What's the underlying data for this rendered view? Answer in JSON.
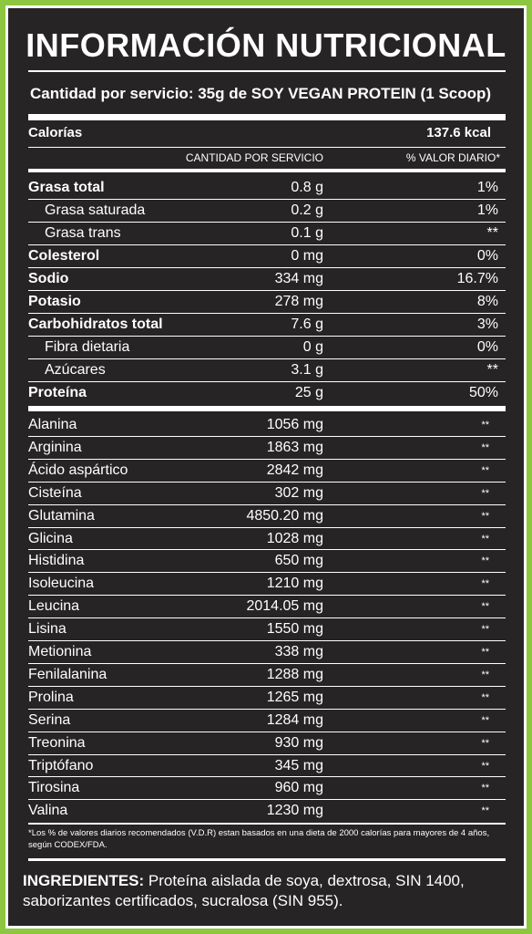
{
  "title": "INFORMACIÓN NUTRICIONAL",
  "serving": "Cantidad por servicio: 35g de SOY VEGAN PROTEIN (1 Scoop)",
  "calories": {
    "label": "Calorías",
    "value": "137.6 kcal"
  },
  "headers": {
    "amount": "CANTIDAD POR SERVICIO",
    "dv": "% VALOR DIARIO*"
  },
  "nutrients": [
    {
      "name": "Grasa total",
      "amount": "0.8 g",
      "dv": "1%",
      "bold": true
    },
    {
      "name": "Grasa saturada",
      "amount": "0.2 g",
      "dv": "1%",
      "sub": true
    },
    {
      "name": "Grasa trans",
      "amount": "0.1 g",
      "dv": "**",
      "sub": true
    },
    {
      "name": "Colesterol",
      "amount": "0 mg",
      "dv": "0%",
      "bold": true
    },
    {
      "name": "Sodio",
      "amount": "334 mg",
      "dv": "16.7%",
      "bold": true
    },
    {
      "name": "Potasio",
      "amount": "278 mg",
      "dv": "8%",
      "bold": true
    },
    {
      "name": "Carbohidratos total",
      "amount": "7.6 g",
      "dv": "3%",
      "bold": true
    },
    {
      "name": "Fibra dietaria",
      "amount": "0 g",
      "dv": "0%",
      "sub": true
    },
    {
      "name": "Azúcares",
      "amount": "3.1 g",
      "dv": "**",
      "sub": true
    },
    {
      "name": "Proteína",
      "amount": "25 g",
      "dv": "50%",
      "bold": true
    }
  ],
  "aminoacids": [
    {
      "name": "Alanina",
      "amount": "1056 mg",
      "dv": "**"
    },
    {
      "name": "Arginina",
      "amount": "1863 mg",
      "dv": "**"
    },
    {
      "name": "Ácido aspártico",
      "amount": "2842 mg",
      "dv": "**"
    },
    {
      "name": "Cisteína",
      "amount": "302 mg",
      "dv": "**"
    },
    {
      "name": "Glutamina",
      "amount": "4850.20 mg",
      "dv": "**"
    },
    {
      "name": "Glicina",
      "amount": "1028 mg",
      "dv": "**"
    },
    {
      "name": "Histidina",
      "amount": "650 mg",
      "dv": "**"
    },
    {
      "name": "Isoleucina",
      "amount": "1210 mg",
      "dv": "**"
    },
    {
      "name": "Leucina",
      "amount": "2014.05 mg",
      "dv": "**"
    },
    {
      "name": "Lisina",
      "amount": "1550 mg",
      "dv": "**"
    },
    {
      "name": "Metionina",
      "amount": "338 mg",
      "dv": "**"
    },
    {
      "name": "Fenilalanina",
      "amount": "1288 mg",
      "dv": "**"
    },
    {
      "name": "Prolina",
      "amount": "1265 mg",
      "dv": "**"
    },
    {
      "name": "Serina",
      "amount": "1284 mg",
      "dv": "**"
    },
    {
      "name": "Treonina",
      "amount": "930 mg",
      "dv": "**"
    },
    {
      "name": "Triptófano",
      "amount": "345 mg",
      "dv": "**"
    },
    {
      "name": "Tirosina",
      "amount": "960 mg",
      "dv": "**"
    },
    {
      "name": "Valina",
      "amount": "1230 mg",
      "dv": "**"
    }
  ],
  "footnote": "*Los % de valores diarios recomendados (V.D.R) estan basados en una dieta de 2000 calorías para mayores de 4 años, según CODEX/FDA.",
  "ingredients": {
    "label": "INGREDIENTES:",
    "text": " Proteína aislada de soya, dextrosa, SIN 1400, saborizantes certificados, sucralosa (SIN 955)."
  },
  "colors": {
    "border": "#8dc63f",
    "background": "#262424",
    "text": "#ffffff"
  }
}
